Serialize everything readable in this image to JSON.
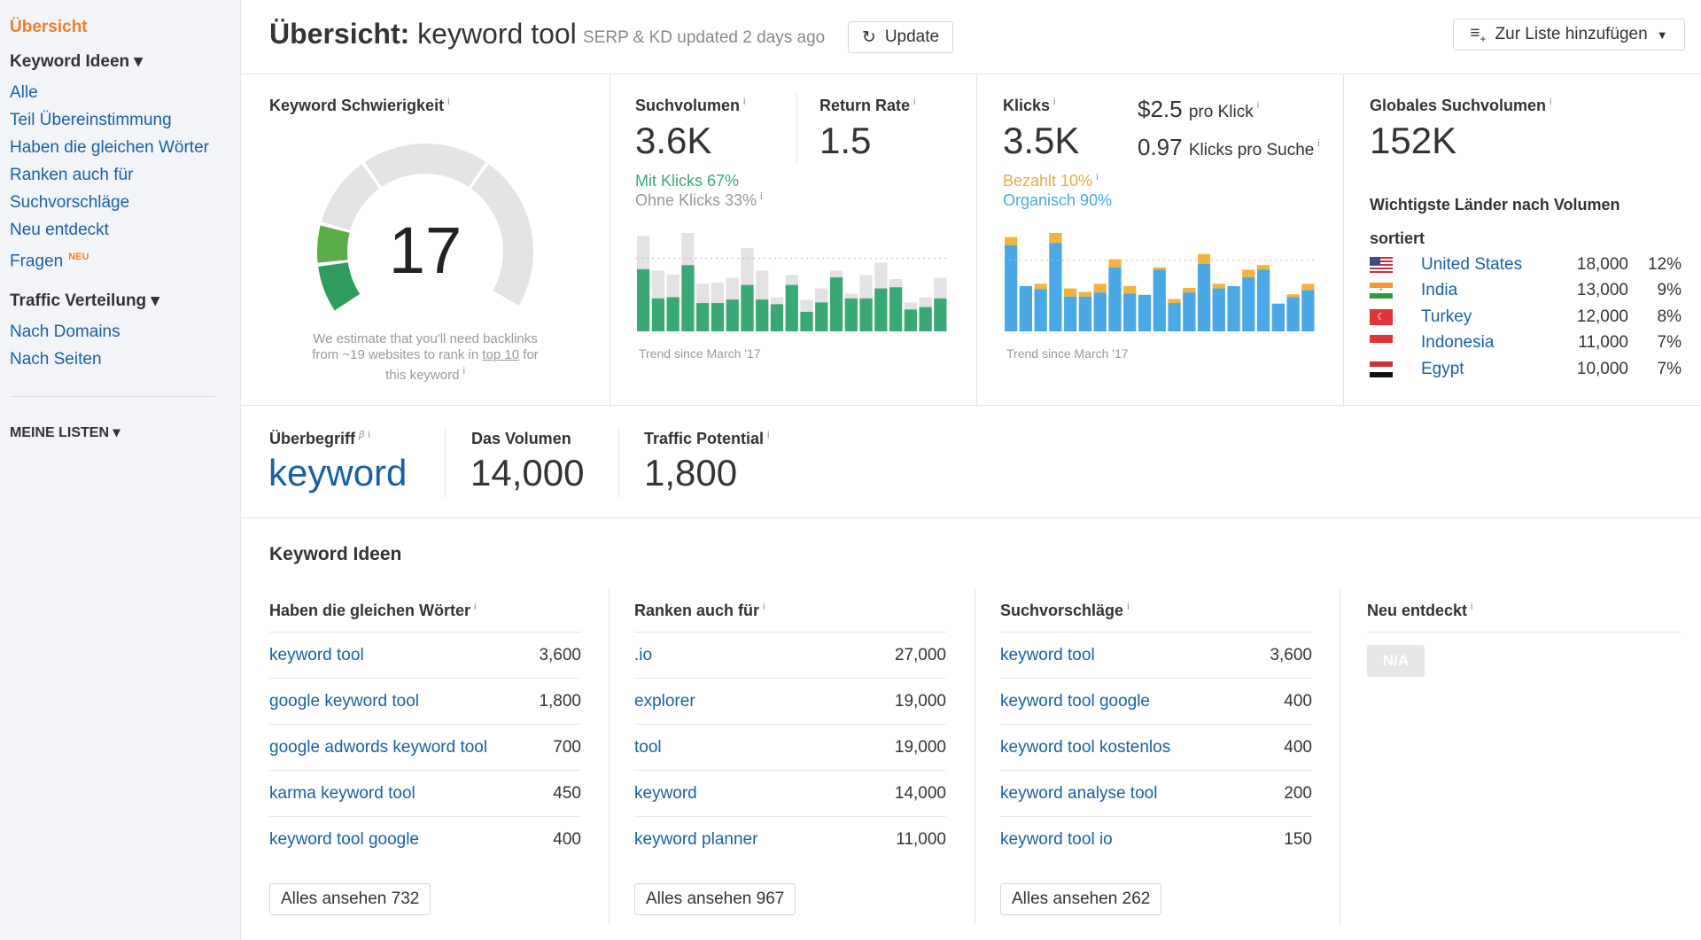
{
  "sidebar": {
    "active": "Übersicht",
    "sections": [
      {
        "title": "Keyword Ideen ▾",
        "items": [
          {
            "label": "Alle"
          },
          {
            "label": "Teil Übereinstimmung"
          },
          {
            "label": "Haben die gleichen Wörter"
          },
          {
            "label": "Ranken auch für"
          },
          {
            "label": "Suchvorschläge"
          },
          {
            "label": "Neu entdeckt"
          },
          {
            "label": "Fragen",
            "badge": "NEU"
          }
        ]
      },
      {
        "title": "Traffic Verteilung ▾",
        "items": [
          {
            "label": "Nach Domains"
          },
          {
            "label": "Nach Seiten"
          }
        ]
      }
    ],
    "my_lists": "MEINE LISTEN ▾"
  },
  "header": {
    "title_bold": "Übersicht:",
    "title_keyword": "keyword tool",
    "subtitle": "SERP & KD updated 2 days ago",
    "update_label": "Update",
    "add_list_label": "Zur Liste hinzufügen"
  },
  "kd": {
    "label": "Keyword Schwierigkeit",
    "info": "i",
    "value": "17",
    "score": 17,
    "note_1": "We estimate that you'll need backlinks",
    "note_2": "from ~19 websites to rank in ",
    "note_link": "top 10",
    "note_3": " for",
    "note_4": "this keyword",
    "colors": {
      "fill_dark": "#2e9d5c",
      "fill_light": "#5cad4a",
      "empty": "#e3e3e5"
    }
  },
  "volume": {
    "label": "Suchvolumen",
    "value": "3.6K",
    "with_clicks": "Mit Klicks 67%",
    "without_clicks": "Ohne Klicks 33%",
    "return_label": "Return Rate",
    "return_value": "1.5",
    "trend_label": "Trend since March '17",
    "trend_total": [
      327,
      208,
      195,
      337,
      163,
      167,
      183,
      285,
      208,
      117,
      193,
      107,
      147,
      208,
      129,
      193,
      235,
      179,
      99,
      117,
      183
    ],
    "trend_clicks": [
      213,
      113,
      117,
      227,
      97,
      97,
      109,
      159,
      109,
      93,
      159,
      67,
      99,
      185,
      113,
      113,
      147,
      151,
      75,
      83,
      113
    ],
    "colors": {
      "clicks": "#3aa874",
      "no_clicks": "#e2e2e4"
    }
  },
  "clicks": {
    "label": "Klicks",
    "value": "3.5K",
    "cpc": "$2.5",
    "cpc_label": "pro Klick",
    "cps": "0.97",
    "cps_label": "Klicks pro Suche",
    "paid": "Bezahlt 10%",
    "organic": "Organisch 90%",
    "trend_label": "Trend since March '17",
    "trend_total": [
      323,
      155,
      163,
      337,
      147,
      135,
      163,
      247,
      155,
      125,
      219,
      111,
      149,
      265,
      163,
      155,
      211,
      227,
      95,
      127,
      163
    ],
    "trend_organic": [
      295,
      155,
      145,
      303,
      119,
      119,
      133,
      219,
      129,
      125,
      211,
      97,
      133,
      231,
      147,
      155,
      185,
      211,
      95,
      117,
      141
    ],
    "colors": {
      "organic": "#4aa8e6",
      "paid": "#f0b53d"
    }
  },
  "global": {
    "label": "Globales Suchvolumen",
    "value": "152K",
    "countries_title_1": "Wichtigste Länder nach Volumen",
    "countries_title_2": "sortiert",
    "countries": [
      {
        "flag": "us-flag-icon",
        "name": "United States",
        "volume": "18,000",
        "share": "12%"
      },
      {
        "flag": "india-flag-icon",
        "name": "India",
        "volume": "13,000",
        "share": "9%"
      },
      {
        "flag": "turkey-flag-icon",
        "name": "Turkey",
        "volume": "12,000",
        "share": "8%"
      },
      {
        "flag": "indonesia-flag-icon",
        "name": "Indonesia",
        "volume": "11,000",
        "share": "7%"
      },
      {
        "flag": "egypt-flag-icon",
        "name": "Egypt",
        "volume": "10,000",
        "share": "7%"
      }
    ]
  },
  "parent": {
    "label": "Überbegriff",
    "beta": "β",
    "keyword": "keyword",
    "vol_label": "Das Volumen",
    "vol_value": "14,000",
    "tp_label": "Traffic Potential",
    "tp_value": "1,800"
  },
  "ideas": {
    "title": "Keyword Ideen",
    "columns": [
      {
        "title": "Haben die gleichen Wörter",
        "rows": [
          [
            "keyword tool",
            "3,600"
          ],
          [
            "google keyword tool",
            "1,800"
          ],
          [
            "google adwords keyword tool",
            "700"
          ],
          [
            "karma keyword tool",
            "450"
          ],
          [
            "keyword tool google",
            "400"
          ]
        ],
        "more": "Alles ansehen 732"
      },
      {
        "title": "Ranken auch für",
        "rows": [
          [
            ".io",
            "27,000"
          ],
          [
            "explorer",
            "19,000"
          ],
          [
            "tool",
            "19,000"
          ],
          [
            "keyword",
            "14,000"
          ],
          [
            "keyword planner",
            "11,000"
          ]
        ],
        "more": "Alles ansehen 967"
      },
      {
        "title": "Suchvorschläge",
        "rows": [
          [
            "keyword tool",
            "3,600"
          ],
          [
            "keyword tool google",
            "400"
          ],
          [
            "keyword tool kostenlos",
            "400"
          ],
          [
            "keyword analyse tool",
            "200"
          ],
          [
            "keyword tool io",
            "150"
          ]
        ],
        "more": "Alles ansehen 262"
      },
      {
        "title": "Neu entdeckt",
        "rows": [],
        "na": "N/A"
      }
    ]
  }
}
